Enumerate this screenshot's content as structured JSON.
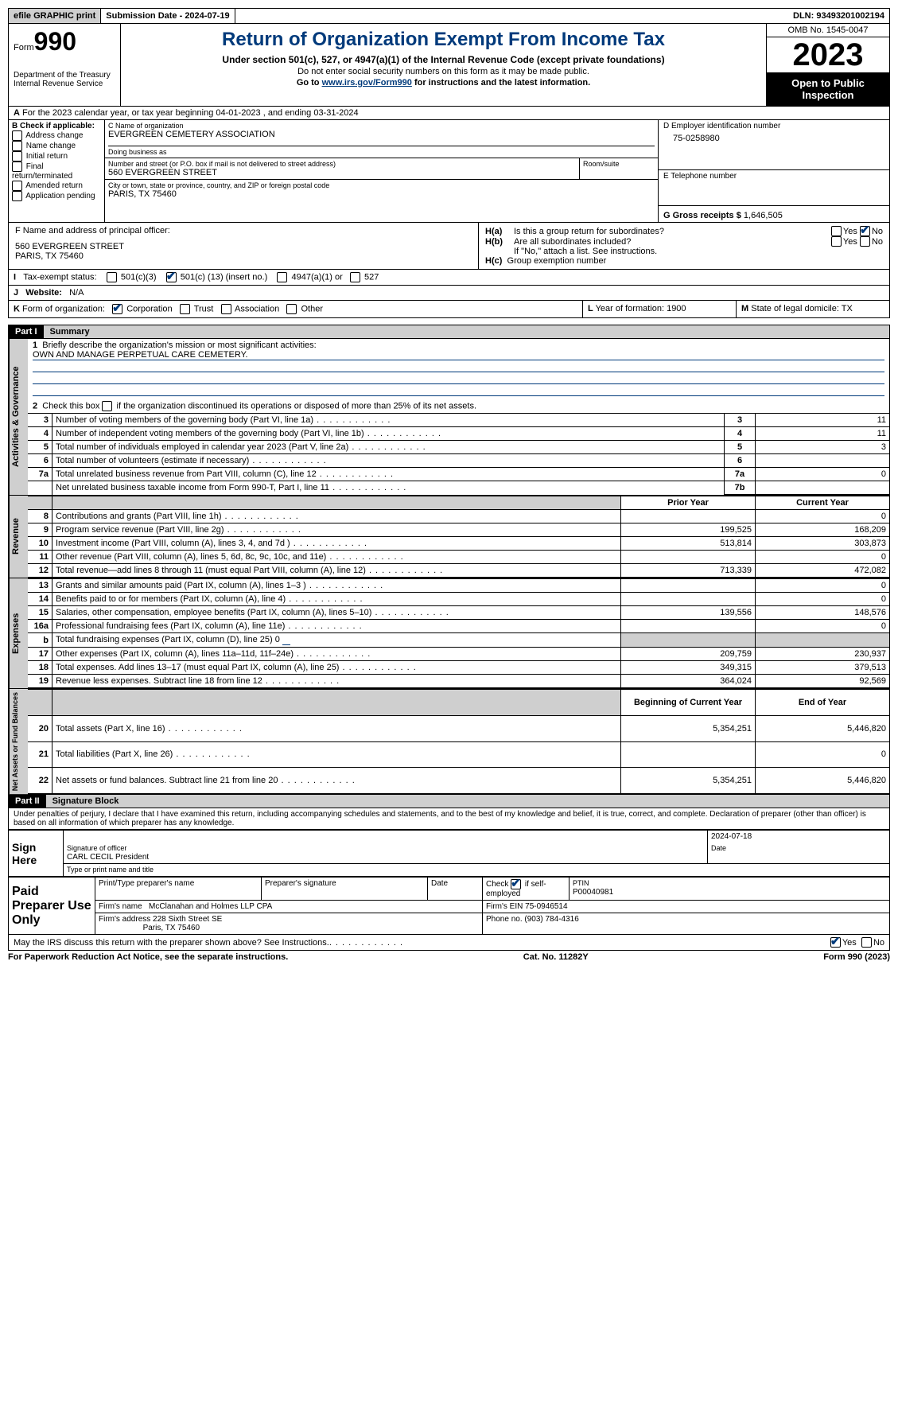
{
  "topbar": {
    "efile": "efile GRAPHIC print",
    "submission": "Submission Date - 2024-07-19",
    "dln": "DLN: 93493201002194"
  },
  "header": {
    "form_prefix": "Form",
    "form_no": "990",
    "title": "Return of Organization Exempt From Income Tax",
    "subtitle": "Under section 501(c), 527, or 4947(a)(1) of the Internal Revenue Code (except private foundations)",
    "note1": "Do not enter social security numbers on this form as it may be made public.",
    "note2_pre": "Go to ",
    "note2_link": "www.irs.gov/Form990",
    "note2_post": " for instructions and the latest information.",
    "dept": "Department of the Treasury\nInternal Revenue Service",
    "omb": "OMB No. 1545-0047",
    "year": "2023",
    "inspect": "Open to Public Inspection"
  },
  "periodA": "For the 2023 calendar year, or tax year beginning 04-01-2023   , and ending 03-31-2024",
  "boxB": {
    "title": "B Check if applicable:",
    "items": [
      "Address change",
      "Name change",
      "Initial return",
      "Final return/terminated",
      "Amended return",
      "Application pending"
    ]
  },
  "boxC": {
    "name_lbl": "C Name of organization",
    "name": "EVERGREEN CEMETERY ASSOCIATION",
    "dba_lbl": "Doing business as",
    "addr_lbl": "Number and street (or P.O. box if mail is not delivered to street address)",
    "addr": "560 EVERGREEN STREET",
    "room_lbl": "Room/suite",
    "city_lbl": "City or town, state or province, country, and ZIP or foreign postal code",
    "city": "PARIS, TX  75460"
  },
  "boxD": {
    "lbl": "D Employer identification number",
    "val": "75-0258980"
  },
  "boxE": {
    "lbl": "E Telephone number"
  },
  "boxG": {
    "lbl": "G Gross receipts $",
    "val": "1,646,505"
  },
  "boxF": {
    "lbl": "F  Name and address of principal officer:",
    "l1": "560 EVERGREEN STREET",
    "l2": "PARIS, TX  75460"
  },
  "boxH": {
    "a": "Is this a group return for subordinates?",
    "b": "Are all subordinates included?",
    "bno": "If \"No,\" attach a list. See instructions.",
    "c": "Group exemption number"
  },
  "yes": "Yes",
  "no": "No",
  "taxI": {
    "lbl": "Tax-exempt status:",
    "o1": "501(c)(3)",
    "o2a": "501(c) (",
    "o2b": "13",
    "o2c": ") (insert no.)",
    "o3": "4947(a)(1) or",
    "o4": "527"
  },
  "webJ": {
    "lbl": "Website:",
    "val": "N/A"
  },
  "orgK": {
    "lbl": "Form of organization:",
    "o1": "Corporation",
    "o2": "Trust",
    "o3": "Association",
    "o4": "Other"
  },
  "yearL": "Year of formation: 1900",
  "stateM": "State of legal domicile: TX",
  "part1": {
    "hdr": "Part I",
    "title": "Summary"
  },
  "summary": {
    "q1": "Briefly describe the organization's mission or most significant activities:",
    "mission": "OWN AND MANAGE PERPETUAL CARE CEMETERY.",
    "q2": "Check this box      if the organization discontinued its operations or disposed of more than 25% of its net assets.",
    "lines_gov": [
      {
        "n": "3",
        "d": "Number of voting members of the governing body (Part VI, line 1a)",
        "b": "3",
        "v": "11"
      },
      {
        "n": "4",
        "d": "Number of independent voting members of the governing body (Part VI, line 1b)",
        "b": "4",
        "v": "11"
      },
      {
        "n": "5",
        "d": "Total number of individuals employed in calendar year 2023 (Part V, line 2a)",
        "b": "5",
        "v": "3"
      },
      {
        "n": "6",
        "d": "Total number of volunteers (estimate if necessary)",
        "b": "6",
        "v": ""
      },
      {
        "n": "7a",
        "d": "Total unrelated business revenue from Part VIII, column (C), line 12",
        "b": "7a",
        "v": "0"
      },
      {
        "n": "",
        "d": "Net unrelated business taxable income from Form 990-T, Part I, line 11",
        "b": "7b",
        "v": ""
      }
    ],
    "col_prior": "Prior Year",
    "col_curr": "Current Year",
    "rev": [
      {
        "n": "8",
        "d": "Contributions and grants (Part VIII, line 1h)",
        "p": "",
        "c": "0"
      },
      {
        "n": "9",
        "d": "Program service revenue (Part VIII, line 2g)",
        "p": "199,525",
        "c": "168,209"
      },
      {
        "n": "10",
        "d": "Investment income (Part VIII, column (A), lines 3, 4, and 7d )",
        "p": "513,814",
        "c": "303,873"
      },
      {
        "n": "11",
        "d": "Other revenue (Part VIII, column (A), lines 5, 6d, 8c, 9c, 10c, and 11e)",
        "p": "",
        "c": "0"
      },
      {
        "n": "12",
        "d": "Total revenue—add lines 8 through 11 (must equal Part VIII, column (A), line 12)",
        "p": "713,339",
        "c": "472,082"
      }
    ],
    "exp": [
      {
        "n": "13",
        "d": "Grants and similar amounts paid (Part IX, column (A), lines 1–3 )",
        "p": "",
        "c": "0"
      },
      {
        "n": "14",
        "d": "Benefits paid to or for members (Part IX, column (A), line 4)",
        "p": "",
        "c": "0"
      },
      {
        "n": "15",
        "d": "Salaries, other compensation, employee benefits (Part IX, column (A), lines 5–10)",
        "p": "139,556",
        "c": "148,576"
      },
      {
        "n": "16a",
        "d": "Professional fundraising fees (Part IX, column (A), line 11e)",
        "p": "",
        "c": "0"
      },
      {
        "n": "b",
        "d": "Total fundraising expenses (Part IX, column (D), line 25) 0",
        "p": "SHADE",
        "c": "SHADE"
      },
      {
        "n": "17",
        "d": "Other expenses (Part IX, column (A), lines 11a–11d, 11f–24e)",
        "p": "209,759",
        "c": "230,937"
      },
      {
        "n": "18",
        "d": "Total expenses. Add lines 13–17 (must equal Part IX, column (A), line 25)",
        "p": "349,315",
        "c": "379,513"
      },
      {
        "n": "19",
        "d": "Revenue less expenses. Subtract line 18 from line 12",
        "p": "364,024",
        "c": "92,569"
      }
    ],
    "col_begin": "Beginning of Current Year",
    "col_end": "End of Year",
    "net": [
      {
        "n": "20",
        "d": "Total assets (Part X, line 16)",
        "p": "5,354,251",
        "c": "5,446,820"
      },
      {
        "n": "21",
        "d": "Total liabilities (Part X, line 26)",
        "p": "",
        "c": "0"
      },
      {
        "n": "22",
        "d": "Net assets or fund balances. Subtract line 21 from line 20",
        "p": "5,354,251",
        "c": "5,446,820"
      }
    ],
    "sec_gov": "Activities & Governance",
    "sec_rev": "Revenue",
    "sec_exp": "Expenses",
    "sec_net": "Net Assets or Fund Balances"
  },
  "part2": {
    "hdr": "Part II",
    "title": "Signature Block"
  },
  "sig": {
    "penalty": "Under penalties of perjury, I declare that I have examined this return, including accompanying schedules and statements, and to the best of my knowledge and belief, it is true, correct, and complete. Declaration of preparer (other than officer) is based on all information of which preparer has any knowledge.",
    "sign_here": "Sign Here",
    "sig_off": "Signature of officer",
    "date_lbl": "Date",
    "date_val": "2024-07-18",
    "officer": "CARL CECIL President",
    "type_name": "Type or print name and title",
    "paid": "Paid Preparer Use Only",
    "pt_name": "Print/Type preparer's name",
    "pt_sig": "Preparer's signature",
    "pt_date": "Date",
    "pt_self": "Check        if self-employed",
    "ptin_lbl": "PTIN",
    "ptin": "P00040981",
    "firm_name_lbl": "Firm's name",
    "firm_name": "McClanahan and Holmes LLP CPA",
    "firm_ein": "Firm's EIN 75-0946514",
    "firm_addr_lbl": "Firm's address",
    "firm_addr1": "228 Sixth Street SE",
    "firm_addr2": "Paris, TX  75460",
    "phone": "Phone no. (903) 784-4316",
    "discuss": "May the IRS discuss this return with the preparer shown above? See Instructions."
  },
  "footer": {
    "notice": "For Paperwork Reduction Act Notice, see the separate instructions.",
    "cat": "Cat. No. 11282Y",
    "form": "Form 990 (2023)"
  }
}
